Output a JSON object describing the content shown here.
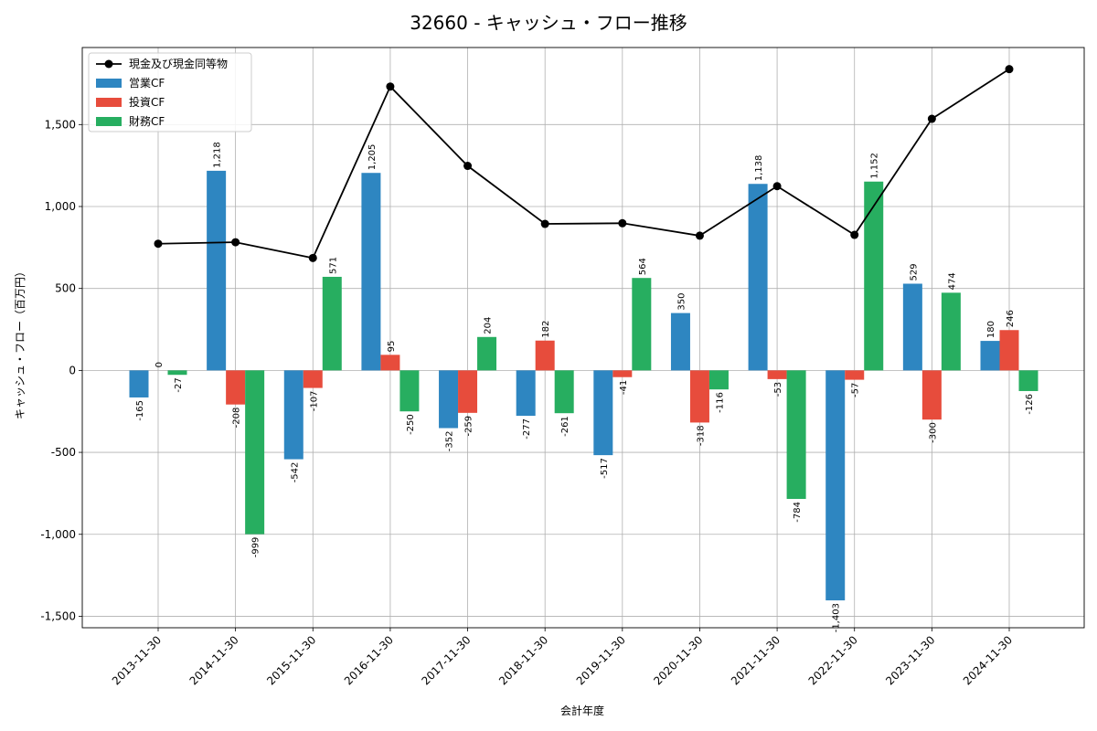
{
  "chart_data": {
    "type": "bar",
    "title": "32660 - キャッシュ・フロー推移",
    "xlabel": "会計年度",
    "ylabel": "キャッシュ・フロー（百万円）",
    "ylim": [
      -1570,
      1970
    ],
    "yticks": [
      -1500,
      -1000,
      -500,
      0,
      500,
      1000,
      1500
    ],
    "ytick_labels": [
      "-1,500",
      "-1,000",
      "-500",
      "0",
      "500",
      "1,000",
      "1,500"
    ],
    "grid": true,
    "legend_position": "top-left",
    "categories": [
      "2013-11-30",
      "2014-11-30",
      "2015-11-30",
      "2016-11-30",
      "2017-11-30",
      "2018-11-30",
      "2019-11-30",
      "2020-11-30",
      "2021-11-30",
      "2022-11-30",
      "2023-11-30",
      "2024-11-30"
    ],
    "series": [
      {
        "name": "営業CF",
        "kind": "bar",
        "color": "#2e86c1",
        "values": [
          -165,
          1218,
          -542,
          1205,
          -352,
          -277,
          -517,
          350,
          1138,
          -1403,
          529,
          180
        ],
        "labels": [
          "-165",
          "1,218",
          "-542",
          "1,205",
          "-352",
          "-277",
          "-517",
          "350",
          "1,138",
          "-1,403",
          "529",
          "180"
        ]
      },
      {
        "name": "投資CF",
        "kind": "bar",
        "color": "#e74c3c",
        "values": [
          0,
          -208,
          -107,
          95,
          -259,
          182,
          -41,
          -318,
          -53,
          -57,
          -300,
          246
        ],
        "labels": [
          "0",
          "-208",
          "-107",
          "95",
          "-259",
          "182",
          "-41",
          "-318",
          "-53",
          "-57",
          "-300",
          "246"
        ]
      },
      {
        "name": "財務CF",
        "kind": "bar",
        "color": "#27ae60",
        "values": [
          -27,
          -999,
          571,
          -250,
          204,
          -261,
          564,
          -116,
          -784,
          1152,
          474,
          -126
        ],
        "labels": [
          "-27",
          "-999",
          "571",
          "-250",
          "204",
          "-261",
          "564",
          "-116",
          "-784",
          "1,152",
          "474",
          "-126"
        ]
      },
      {
        "name": "現金及び現金同等物",
        "kind": "line",
        "color": "#000000",
        "values": [
          773,
          782,
          686,
          1732,
          1248,
          894,
          898,
          822,
          1124,
          827,
          1535,
          1838
        ]
      }
    ]
  }
}
